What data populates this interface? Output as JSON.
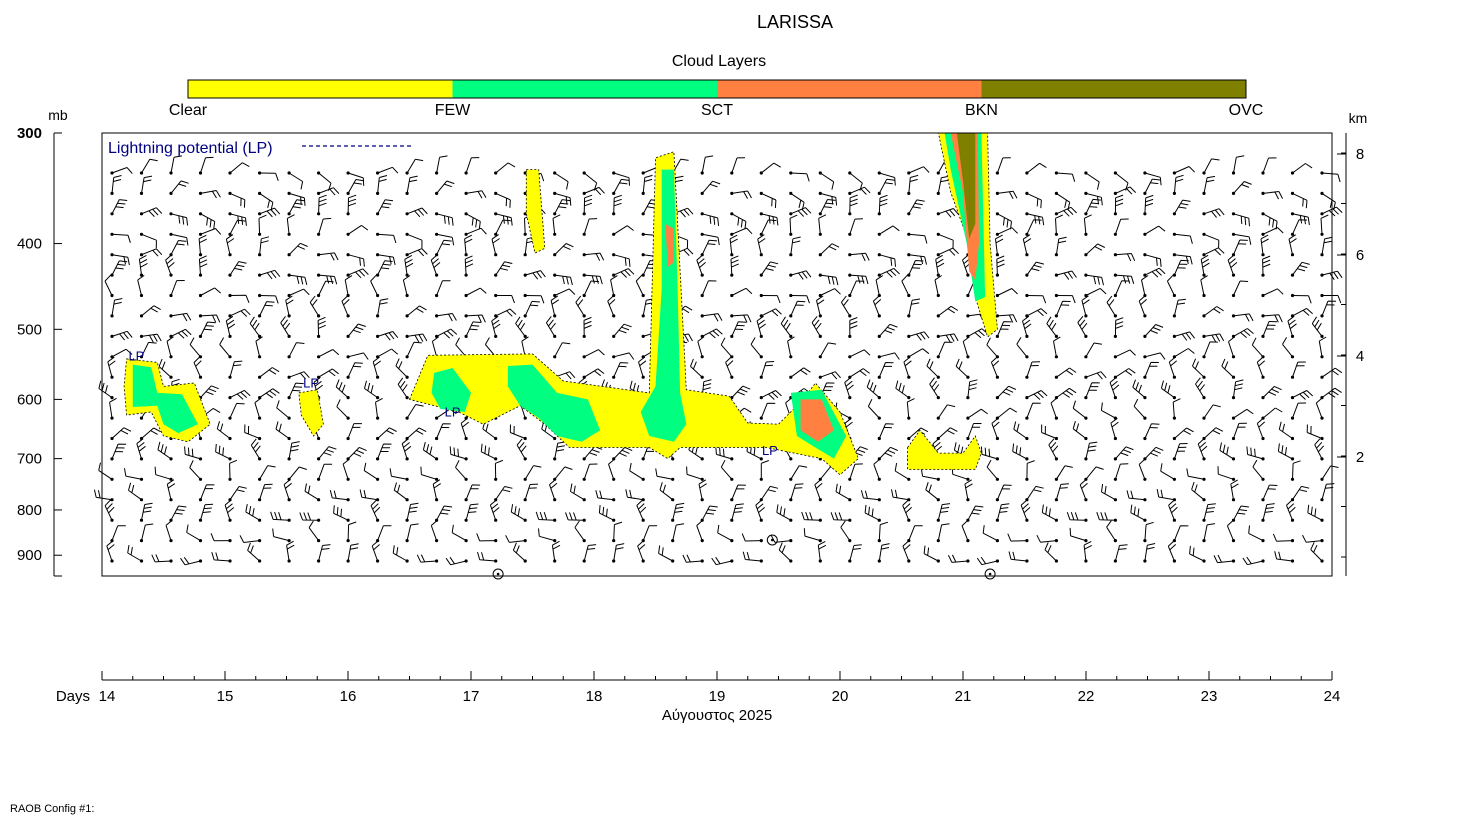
{
  "chart_data": {
    "type": "heatmap",
    "title": "LARISSA",
    "legend": {
      "title": "Cloud Layers",
      "items": [
        {
          "label": "Clear",
          "color": "#ffffff"
        },
        {
          "label": "FEW",
          "color": "#ffff00"
        },
        {
          "label": "SCT",
          "color": "#00ff80"
        },
        {
          "label": "BKN",
          "color": "#ff8040"
        },
        {
          "label": "OVC",
          "color": "#808000"
        }
      ],
      "placement": "top"
    },
    "lp_legend": "Lightning potential (LP)",
    "lp_color": "#000080",
    "lp_label": "LP",
    "y_left": {
      "unit": "mb",
      "ticks": [
        300,
        400,
        500,
        600,
        700,
        800,
        900
      ],
      "range": [
        950,
        300
      ],
      "scale": "log"
    },
    "y_right": {
      "unit": "km",
      "ticks": [
        2,
        4,
        6,
        8
      ]
    },
    "x": {
      "label": "Days",
      "ticks": [
        14,
        15,
        16,
        17,
        18,
        19,
        20,
        21,
        22,
        23,
        24
      ],
      "range": [
        14,
        24
      ],
      "month_label": "Αύγουστος 2025"
    },
    "cloud_regions": [
      {
        "level": "FEW",
        "points": [
          [
            14.2,
            540
          ],
          [
            14.45,
            545
          ],
          [
            14.5,
            580
          ],
          [
            14.75,
            575
          ],
          [
            14.88,
            640
          ],
          [
            14.7,
            670
          ],
          [
            14.5,
            660
          ],
          [
            14.4,
            620
          ],
          [
            14.2,
            625
          ],
          [
            14.18,
            580
          ]
        ]
      },
      {
        "level": "SCT",
        "points": [
          [
            14.25,
            548
          ],
          [
            14.4,
            552
          ],
          [
            14.45,
            590
          ],
          [
            14.65,
            592
          ],
          [
            14.78,
            640
          ],
          [
            14.62,
            655
          ],
          [
            14.5,
            640
          ],
          [
            14.45,
            610
          ],
          [
            14.25,
            612
          ]
        ]
      },
      {
        "level": "FEW",
        "points": [
          [
            15.6,
            590
          ],
          [
            15.75,
            585
          ],
          [
            15.8,
            640
          ],
          [
            15.72,
            660
          ],
          [
            15.62,
            625
          ]
        ]
      },
      {
        "level": "FEW",
        "points": [
          [
            16.5,
            600
          ],
          [
            16.65,
            535
          ],
          [
            17.5,
            533
          ],
          [
            17.75,
            572
          ],
          [
            18.45,
            590
          ],
          [
            18.5,
            320
          ],
          [
            18.65,
            315
          ],
          [
            18.75,
            585
          ],
          [
            19.1,
            595
          ],
          [
            19.25,
            638
          ],
          [
            19.5,
            640
          ],
          [
            19.7,
            600
          ],
          [
            19.8,
            575
          ],
          [
            20.0,
            620
          ],
          [
            20.15,
            700
          ],
          [
            20.0,
            730
          ],
          [
            19.85,
            700
          ],
          [
            19.4,
            680
          ],
          [
            18.7,
            680
          ],
          [
            18.6,
            700
          ],
          [
            18.45,
            680
          ],
          [
            17.8,
            680
          ],
          [
            17.6,
            640
          ],
          [
            17.4,
            610
          ],
          [
            17.1,
            640
          ],
          [
            16.9,
            620
          ],
          [
            16.7,
            610
          ]
        ]
      },
      {
        "level": "SCT",
        "points": [
          [
            16.7,
            560
          ],
          [
            16.85,
            553
          ],
          [
            17.0,
            590
          ],
          [
            16.95,
            620
          ],
          [
            16.75,
            615
          ],
          [
            16.68,
            590
          ]
        ]
      },
      {
        "level": "SCT",
        "points": [
          [
            17.3,
            550
          ],
          [
            17.5,
            548
          ],
          [
            17.7,
            590
          ],
          [
            17.95,
            600
          ],
          [
            18.05,
            650
          ],
          [
            17.9,
            670
          ],
          [
            17.7,
            660
          ],
          [
            17.55,
            630
          ],
          [
            17.4,
            610
          ],
          [
            17.3,
            580
          ]
        ]
      },
      {
        "level": "SCT",
        "points": [
          [
            18.55,
            330
          ],
          [
            18.65,
            330
          ],
          [
            18.68,
            450
          ],
          [
            18.7,
            590
          ],
          [
            18.75,
            640
          ],
          [
            18.65,
            670
          ],
          [
            18.45,
            660
          ],
          [
            18.38,
            620
          ],
          [
            18.5,
            580
          ],
          [
            18.55,
            450
          ]
        ]
      },
      {
        "level": "BKN",
        "points": [
          [
            18.58,
            380
          ],
          [
            18.65,
            385
          ],
          [
            18.65,
            420
          ],
          [
            18.6,
            425
          ]
        ]
      },
      {
        "level": "SCT",
        "points": [
          [
            19.6,
            590
          ],
          [
            19.85,
            585
          ],
          [
            20.05,
            660
          ],
          [
            19.95,
            700
          ],
          [
            19.8,
            680
          ],
          [
            19.65,
            660
          ]
        ]
      },
      {
        "level": "BKN",
        "points": [
          [
            19.68,
            600
          ],
          [
            19.85,
            600
          ],
          [
            19.95,
            650
          ],
          [
            19.82,
            670
          ],
          [
            19.68,
            650
          ]
        ]
      },
      {
        "level": "FEW",
        "points": [
          [
            17.45,
            330
          ],
          [
            17.55,
            330
          ],
          [
            17.6,
            405
          ],
          [
            17.52,
            410
          ],
          [
            17.45,
            370
          ]
        ]
      },
      {
        "level": "FEW",
        "points": [
          [
            20.55,
            680
          ],
          [
            20.65,
            650
          ],
          [
            20.8,
            690
          ],
          [
            21.0,
            690
          ],
          [
            21.1,
            660
          ],
          [
            21.15,
            690
          ],
          [
            21.1,
            720
          ],
          [
            20.55,
            720
          ]
        ]
      },
      {
        "level": "FEW",
        "points": [
          [
            20.8,
            300
          ],
          [
            21.2,
            300
          ],
          [
            21.22,
            400
          ],
          [
            21.28,
            500
          ],
          [
            21.2,
            510
          ],
          [
            21.1,
            460
          ],
          [
            21.05,
            400
          ],
          [
            20.9,
            350
          ]
        ]
      },
      {
        "level": "SCT",
        "points": [
          [
            20.85,
            300
          ],
          [
            21.15,
            300
          ],
          [
            21.17,
            400
          ],
          [
            21.18,
            460
          ],
          [
            21.1,
            465
          ],
          [
            21.03,
            400
          ],
          [
            20.9,
            330
          ]
        ]
      },
      {
        "level": "BKN",
        "points": [
          [
            20.9,
            300
          ],
          [
            21.12,
            300
          ],
          [
            21.13,
            400
          ],
          [
            21.1,
            440
          ],
          [
            21.05,
            430
          ],
          [
            21.0,
            350
          ]
        ]
      },
      {
        "level": "OVC",
        "points": [
          [
            20.95,
            300
          ],
          [
            21.1,
            300
          ],
          [
            21.1,
            380
          ],
          [
            21.05,
            395
          ],
          [
            21.0,
            340
          ]
        ]
      }
    ],
    "lp_markers": [
      {
        "day": 14.28,
        "p": 542
      },
      {
        "day": 15.7,
        "p": 582
      },
      {
        "day": 16.85,
        "p": 627
      },
      {
        "day": 19.43,
        "p": 693
      }
    ],
    "surface_calm_marks": [
      {
        "day": 17.22,
        "p": 945
      },
      {
        "day": 19.45,
        "p": 865
      },
      {
        "day": 21.22,
        "p": 945
      }
    ],
    "grid": false
  },
  "footer": "RAOB Config #1:"
}
